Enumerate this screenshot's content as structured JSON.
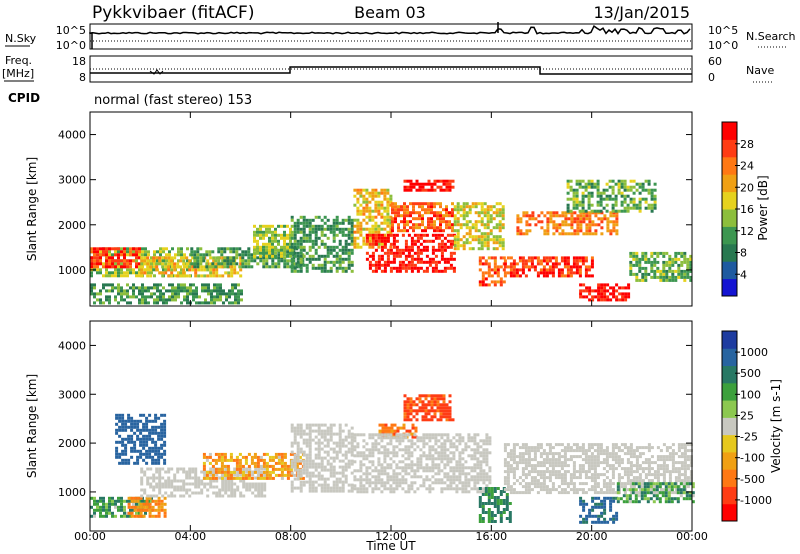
{
  "header": {
    "station": "Pykkvibaer (fitACF)",
    "beam": "Beam 03",
    "date": "13/Jan/2015"
  },
  "summary_panel": {
    "nsky_label": "N.Sky",
    "nsearch_label": "N.Search",
    "noise_ticks_left": [
      "10^5",
      "10^0"
    ],
    "noise_ticks_right": [
      "10^5",
      "10^0"
    ],
    "freq_label_1": "Freq.",
    "freq_label_2": "[MHz]",
    "freq_ticks": [
      "18",
      "8"
    ],
    "nave_label": "Nave",
    "nave_ticks": [
      "60",
      "0"
    ],
    "cpid_label": "CPID",
    "cpid_text": "normal (fast stereo) 153"
  },
  "colorbars": {
    "power": {
      "label": "Power [dB]",
      "ticks": [
        "28",
        "24",
        "20",
        "16",
        "12",
        "8",
        "4"
      ],
      "colors": [
        "#1414d2",
        "#1e5aa0",
        "#287850",
        "#3c9650",
        "#8cbe3c",
        "#e6d21e",
        "#f0a014",
        "#ff7814",
        "#ff3c14",
        "#ff0000"
      ]
    },
    "velocity": {
      "label": "Velocity [m s-1]",
      "ticks": [
        "1000",
        "500",
        "100",
        "25",
        "-25",
        "-100",
        "-500",
        "-1000"
      ],
      "colors": [
        "#1e3ca0",
        "#2864a0",
        "#287864",
        "#3ca03c",
        "#8cc850",
        "#c8c8c0",
        "#e6c81e",
        "#f0a014",
        "#ff7814",
        "#ff3c14",
        "#ff0000"
      ]
    }
  },
  "axes": {
    "ylabel": "Slant Range [km]",
    "yticks": [
      "4000",
      "3000",
      "2000",
      "1000"
    ],
    "xticks": [
      "00:00",
      "04:00",
      "08:00",
      "12:00",
      "16:00",
      "20:00",
      "00:00"
    ],
    "xlabel": "Time UT"
  },
  "chart_data": [
    {
      "type": "heatmap",
      "name": "power",
      "xlabel": "Time UT",
      "ylabel": "Slant Range [km]",
      "xlim": [
        0,
        24
      ],
      "ylim": [
        200,
        4500
      ],
      "colorbar_label": "Power [dB]",
      "clim": [
        0,
        30
      ],
      "patches": [
        {
          "t": [
            0.0,
            4.0
          ],
          "r": [
            900,
            1500
          ],
          "power": 14
        },
        {
          "t": [
            0.0,
            2.0
          ],
          "r": [
            1100,
            1500
          ],
          "power": 26
        },
        {
          "t": [
            2.0,
            6.0
          ],
          "r": [
            900,
            1300
          ],
          "power": 18
        },
        {
          "t": [
            0.0,
            6.0
          ],
          "r": [
            300,
            700
          ],
          "power": 10
        },
        {
          "t": [
            4.0,
            8.5
          ],
          "r": [
            1100,
            1500
          ],
          "power": 10
        },
        {
          "t": [
            6.5,
            8.0
          ],
          "r": [
            1300,
            2000
          ],
          "power": 14
        },
        {
          "t": [
            8.0,
            10.5
          ],
          "r": [
            1000,
            2200
          ],
          "power": 10
        },
        {
          "t": [
            10.5,
            12.0
          ],
          "r": [
            1500,
            2800
          ],
          "power": 18
        },
        {
          "t": [
            11.0,
            14.5
          ],
          "r": [
            1000,
            1800
          ],
          "power": 28
        },
        {
          "t": [
            12.0,
            14.5
          ],
          "r": [
            1900,
            2500
          ],
          "power": 24
        },
        {
          "t": [
            12.5,
            14.5
          ],
          "r": [
            2800,
            3000
          ],
          "power": 28
        },
        {
          "t": [
            14.5,
            16.5
          ],
          "r": [
            1500,
            2500
          ],
          "power": 16
        },
        {
          "t": [
            15.5,
            16.5
          ],
          "r": [
            700,
            1300
          ],
          "power": 24
        },
        {
          "t": [
            16.5,
            20.0
          ],
          "r": [
            900,
            1300
          ],
          "power": 26
        },
        {
          "t": [
            17.0,
            21.0
          ],
          "r": [
            1800,
            2300
          ],
          "power": 22
        },
        {
          "t": [
            19.0,
            22.5
          ],
          "r": [
            2300,
            3000
          ],
          "power": 12
        },
        {
          "t": [
            19.5,
            21.5
          ],
          "r": [
            350,
            700
          ],
          "power": 28
        },
        {
          "t": [
            21.5,
            24.0
          ],
          "r": [
            800,
            1400
          ],
          "power": 12
        }
      ]
    },
    {
      "type": "heatmap",
      "name": "velocity",
      "xlabel": "Time UT",
      "ylabel": "Slant Range [km]",
      "xlim": [
        0,
        24
      ],
      "ylim": [
        200,
        4500
      ],
      "colorbar_label": "Velocity [m s-1]",
      "patches": [
        {
          "t": [
            0.0,
            2.5
          ],
          "r": [
            500,
            900
          ],
          "velocity": 200
        },
        {
          "t": [
            1.0,
            3.0
          ],
          "r": [
            1600,
            2600
          ],
          "velocity": 800
        },
        {
          "t": [
            1.5,
            3.0
          ],
          "r": [
            500,
            900
          ],
          "velocity": -300
        },
        {
          "t": [
            2.0,
            7.0
          ],
          "r": [
            900,
            1500
          ],
          "velocity": 0
        },
        {
          "t": [
            4.5,
            8.5
          ],
          "r": [
            1300,
            1800
          ],
          "velocity": -200
        },
        {
          "t": [
            8.0,
            10.5
          ],
          "r": [
            1000,
            2400
          ],
          "velocity": 0
        },
        {
          "t": [
            11.5,
            13.0
          ],
          "r": [
            2100,
            2400
          ],
          "velocity": -400
        },
        {
          "t": [
            12.5,
            14.5
          ],
          "r": [
            2500,
            3000
          ],
          "velocity": -600
        },
        {
          "t": [
            10.5,
            16.0
          ],
          "r": [
            1000,
            2200
          ],
          "velocity": 0
        },
        {
          "t": [
            15.5,
            16.8
          ],
          "r": [
            400,
            1100
          ],
          "velocity": 300
        },
        {
          "t": [
            16.5,
            24.0
          ],
          "r": [
            1000,
            2000
          ],
          "velocity": 0
        },
        {
          "t": [
            19.5,
            21.0
          ],
          "r": [
            400,
            900
          ],
          "velocity": 600
        },
        {
          "t": [
            21.0,
            24.0
          ],
          "r": [
            800,
            1200
          ],
          "velocity": 200
        }
      ]
    }
  ]
}
